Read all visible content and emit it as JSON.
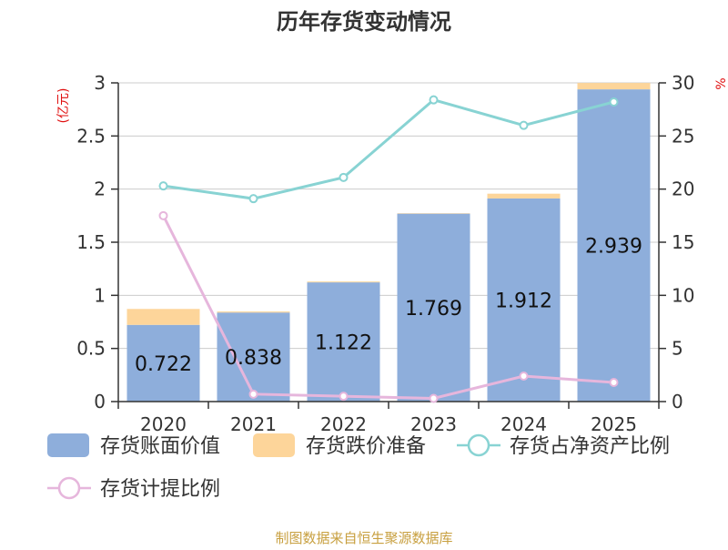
{
  "chart_data": {
    "type": "bar",
    "title": "历年存货变动情况",
    "left_axis_unit": "(亿元)",
    "right_axis_unit": "%",
    "categories": [
      "2020",
      "2021",
      "2022",
      "2023",
      "2024",
      "2025"
    ],
    "ylim_left": [
      0,
      3
    ],
    "yticks_left": [
      "0",
      "0.5",
      "1",
      "1.5",
      "2",
      "2.5",
      "3"
    ],
    "ylim_right": [
      0,
      30
    ],
    "yticks_right": [
      "0",
      "5",
      "10",
      "15",
      "20",
      "25",
      "30"
    ],
    "grid": true,
    "legend_position": "bottom",
    "stacked_bars": [
      {
        "name": "存货账面价值",
        "color": "#8eaedb",
        "values": [
          0.722,
          0.838,
          1.122,
          1.769,
          1.912,
          2.939
        ],
        "labels": [
          "0.722",
          "0.838",
          "1.122",
          "1.769",
          "1.912",
          "2.939"
        ]
      },
      {
        "name": "存货跌价准备",
        "color": "#fdd59a",
        "values": [
          0.15,
          0.01,
          0.008,
          0.004,
          0.045,
          0.06
        ]
      }
    ],
    "lines": [
      {
        "name": "存货占净资产比例",
        "color": "#88d3d3",
        "axis": "right",
        "values": [
          20.3,
          19.1,
          21.1,
          28.4,
          26.0,
          28.2
        ]
      },
      {
        "name": "存货计提比例",
        "color": "#e6b6dc",
        "axis": "right",
        "values": [
          17.5,
          0.7,
          0.5,
          0.3,
          2.4,
          1.8
        ]
      }
    ]
  },
  "footer": {
    "source": "制图数据来自恒生聚源数据库"
  }
}
